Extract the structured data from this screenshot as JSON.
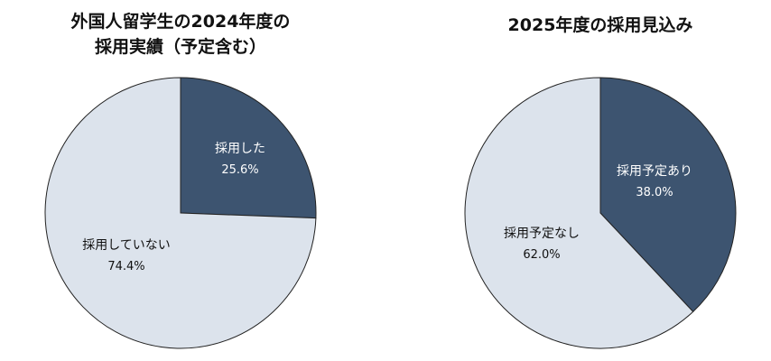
{
  "chart_data": [
    {
      "type": "pie",
      "title_lines": [
        "外国人留学生の2024年度の",
        "採用実績（予定含む）"
      ],
      "slices": [
        {
          "label": "採用した",
          "value": 25.6,
          "value_label": "25.6%",
          "color": "#3d5470",
          "text_color": "#ffffff"
        },
        {
          "label": "採用していない",
          "value": 74.4,
          "value_label": "74.4%",
          "color": "#dce3ec",
          "text_color": "#111111"
        }
      ]
    },
    {
      "type": "pie",
      "title_lines": [
        "2025年度の採用見込み"
      ],
      "slices": [
        {
          "label": "採用予定あり",
          "value": 38.0,
          "value_label": "38.0%",
          "color": "#3d5470",
          "text_color": "#ffffff"
        },
        {
          "label": "採用予定なし",
          "value": 62.0,
          "value_label": "62.0%",
          "color": "#dce3ec",
          "text_color": "#111111"
        }
      ]
    }
  ]
}
